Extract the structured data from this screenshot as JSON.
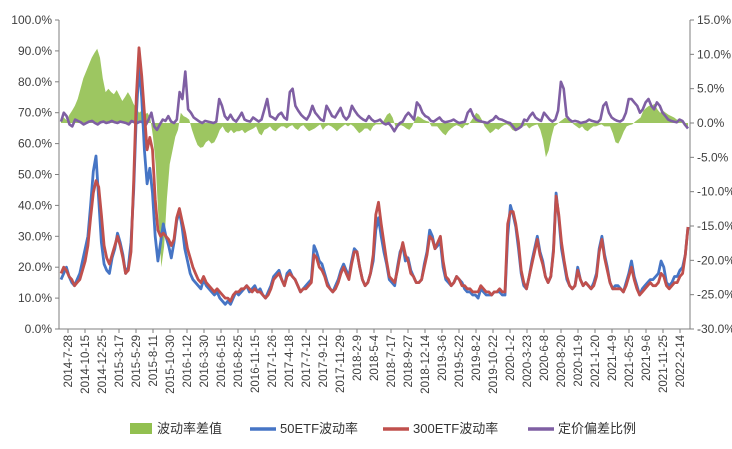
{
  "chart_data": {
    "type": "line",
    "title": "",
    "xlabel": "",
    "ylabel": "",
    "y_left": {
      "min": 0,
      "max": 100,
      "ticks": [
        "0.0%",
        "10.0%",
        "20.0%",
        "30.0%",
        "40.0%",
        "50.0%",
        "60.0%",
        "70.0%",
        "80.0%",
        "90.0%",
        "100.0%"
      ]
    },
    "y_right": {
      "min": -30,
      "max": 15,
      "ticks": [
        "-30.0%",
        "-25.0%",
        "-20.0%",
        "-15.0%",
        "-10.0%",
        "-5.0%",
        "0.0%",
        "5.0%",
        "10.0%",
        "15.0%"
      ]
    },
    "x_tick_labels": [
      "2014-7-28",
      "2014-10-15",
      "2014-12-25",
      "2015-3-17",
      "2015-5-29",
      "2015-8-11",
      "2015-10-30",
      "2016-1-12",
      "2016-3-30",
      "2016-6-15",
      "2016-8-25",
      "2016-11-15",
      "2017-1-26",
      "2017-4-18",
      "2017-7-12",
      "2017-9-12",
      "2017-11-29",
      "2018-2-9",
      "2018-5-4",
      "2018-7-17",
      "2018-9-27",
      "2018-12-14",
      "2019-3-6",
      "2019-5-22",
      "2019-8-2",
      "2019-10-22",
      "2020-1-2",
      "2020-3-23",
      "2020-6-8",
      "2020-8-20",
      "2020-11-9",
      "2021-1-20",
      "2021-4-9",
      "2021-6-25",
      "2021-9-6",
      "2021-11-25",
      "2022-2-14"
    ],
    "grid": false,
    "legend": "bottom",
    "colors": {
      "diff": "#92c050",
      "etf50": "#4675c5",
      "etf300": "#c0504d",
      "pricing": "#7f5fa3",
      "axis": "#7f7f7f",
      "tick_text": "#404040"
    },
    "series": [
      {
        "name": "波动率差值",
        "type": "area",
        "axis": "right",
        "values": [
          0.5,
          0.8,
          0.4,
          1.2,
          1.8,
          2.5,
          3.5,
          5,
          6.5,
          7.5,
          8.5,
          9.5,
          10.2,
          10.8,
          9.5,
          6.5,
          4.5,
          5,
          4.5,
          4.2,
          4.8,
          4,
          3.2,
          3.8,
          4.5,
          3.8,
          2.8,
          2.2,
          1.5,
          1.8,
          1.2,
          1.5,
          0.8,
          -2,
          -6,
          -14,
          -21,
          -18,
          -11,
          -6,
          -4,
          -2,
          -1,
          1.5,
          1,
          0.8,
          0.5,
          -1,
          -2.2,
          -3.2,
          -3.6,
          -3.5,
          -2.8,
          -2.5,
          -3,
          -2.8,
          -2,
          -1,
          -0.5,
          -1.2,
          -1.5,
          -1,
          -1.5,
          -1.2,
          -1.2,
          -1,
          -1.5,
          -1.2,
          -1,
          -0.8,
          -0.5,
          -1.5,
          -1.8,
          -1,
          -0.8,
          -0.5,
          -1,
          -1.2,
          -0.8,
          -0.5,
          -0.5,
          -0.8,
          -0.5,
          -0.3,
          -0.8,
          -1,
          -0.5,
          -0.3,
          -0.8,
          -1.2,
          -1,
          -0.8,
          -0.5,
          -0.2,
          -1,
          -0.5,
          -0.3,
          -0.5,
          -0.8,
          -1.2,
          -0.8,
          -0.5,
          -0.2,
          -0.5,
          -0.2,
          -0.5,
          -1,
          -1.5,
          -1.2,
          -0.8,
          -0.8,
          -1.2,
          -0.5,
          -0.2,
          -0.2,
          -0.2,
          0.5,
          1.2,
          1.5,
          0.8,
          -0.5,
          -0.5,
          -0.3,
          -0.5,
          -0.8,
          -1,
          -0.5,
          0.5,
          1,
          0.8,
          0.5,
          0.3,
          0.2,
          -0.5,
          -0.5,
          -0.5,
          -1,
          -1.5,
          -1.8,
          -1.2,
          -0.8,
          -0.5,
          -0.3,
          -0.5,
          -0.8,
          -0.3,
          -0.3,
          0.2,
          0.8,
          1.5,
          1.2,
          0.5,
          -0.5,
          -1,
          -1.5,
          -1.2,
          -0.8,
          -1,
          -0.6,
          -0.3,
          -0.2,
          -0.5,
          -1,
          -1.2,
          -0.8,
          -0.5,
          -0.5,
          -0.3,
          -0.8,
          -0.5,
          -0.3,
          -0.2,
          -1,
          -2.5,
          -5,
          -4,
          -2,
          -0.5,
          -0.2,
          0.2,
          0.5,
          0.8,
          0.5,
          0.2,
          -0.2,
          -0.5,
          -0.8,
          -0.5,
          -1,
          -1.2,
          -0.8,
          -0.5,
          -0.5,
          -0.3,
          -0.2,
          -0.5,
          -0.5,
          -0.5,
          -1.5,
          -2.8,
          -3,
          -2.2,
          -1.2,
          -0.5,
          -0.3,
          -0.2,
          0.2,
          0.5,
          0.8,
          1.8,
          2.2,
          2.5,
          2.5,
          2.8,
          2,
          1.5,
          1.8,
          1.5,
          1.2,
          1,
          0.8,
          0.5,
          0.3,
          0.2,
          -0.2,
          -0.5
        ],
        "note": "left to right across the chart"
      },
      {
        "name": "50ETF波动率",
        "type": "line",
        "axis": "left",
        "values": [
          16,
          18,
          20,
          17,
          15,
          14,
          16,
          18,
          22,
          26,
          30,
          40,
          51,
          56,
          42,
          28,
          21,
          19,
          18,
          23,
          26,
          31,
          28,
          24,
          18,
          20,
          28,
          45,
          69,
          85,
          75,
          58,
          47,
          52,
          44,
          30,
          22,
          28,
          34,
          30,
          27,
          23,
          28,
          35,
          38,
          33,
          26,
          22,
          18,
          16,
          15,
          14,
          13,
          16,
          14,
          13,
          12,
          11,
          12,
          10,
          9,
          8,
          9,
          8,
          10,
          12,
          11,
          12,
          13,
          14,
          12,
          13,
          14,
          12,
          13,
          11,
          10,
          12,
          14,
          17,
          18,
          19,
          16,
          14,
          18,
          19,
          17,
          16,
          14,
          12,
          13,
          14,
          15,
          16,
          27,
          25,
          22,
          21,
          18,
          15,
          13,
          12,
          14,
          16,
          19,
          21,
          19,
          17,
          22,
          26,
          25,
          20,
          16,
          14,
          15,
          18,
          22,
          32,
          36,
          30,
          25,
          21,
          16,
          15,
          14,
          20,
          25,
          27,
          22,
          23,
          19,
          17,
          15,
          15,
          16,
          21,
          25,
          32,
          30,
          26,
          27,
          28,
          20,
          16,
          15,
          14,
          15,
          17,
          16,
          15,
          13,
          12,
          12,
          11,
          11,
          10,
          13,
          12,
          11,
          11,
          11,
          12,
          12,
          12,
          11,
          11,
          30,
          40,
          37,
          33,
          26,
          18,
          14,
          13,
          17,
          22,
          26,
          30,
          25,
          22,
          17,
          15,
          17,
          26,
          44,
          36,
          26,
          21,
          16,
          14,
          13,
          14,
          20,
          16,
          14,
          15,
          14,
          13,
          15,
          18,
          26,
          30,
          24,
          20,
          15,
          13,
          14,
          14,
          13,
          12,
          15,
          18,
          22,
          17,
          14,
          11,
          13,
          14,
          15,
          16,
          16,
          17,
          18,
          22,
          20,
          15,
          14,
          15,
          17,
          17,
          19,
          20,
          24,
          33
        ]
      },
      {
        "name": "300ETF波动率",
        "type": "line",
        "axis": "left",
        "values": [
          18,
          20,
          19,
          17,
          16,
          14,
          15,
          16,
          19,
          22,
          27,
          36,
          44,
          48,
          46,
          37,
          27,
          23,
          21,
          24,
          27,
          30,
          27,
          23,
          18,
          19,
          25,
          48,
          75,
          91,
          82,
          70,
          58,
          62,
          58,
          42,
          32,
          30,
          31,
          30,
          29,
          27,
          29,
          36,
          39,
          35,
          31,
          26,
          23,
          20,
          18,
          16,
          15,
          17,
          15,
          14,
          13,
          12,
          13,
          12,
          11,
          10,
          10,
          9,
          11,
          12,
          12,
          13,
          13,
          14,
          13,
          12,
          13,
          12,
          12,
          11,
          10,
          11,
          13,
          16,
          17,
          18,
          16,
          14,
          17,
          18,
          17,
          16,
          14,
          12,
          13,
          13,
          14,
          15,
          24,
          23,
          20,
          19,
          17,
          14,
          13,
          12,
          13,
          15,
          18,
          20,
          18,
          16,
          21,
          25,
          25,
          20,
          16,
          14,
          15,
          18,
          24,
          37,
          41,
          34,
          28,
          22,
          17,
          16,
          15,
          19,
          24,
          28,
          24,
          22,
          18,
          17,
          15,
          15,
          16,
          20,
          24,
          30,
          29,
          26,
          28,
          30,
          22,
          17,
          16,
          14,
          15,
          17,
          16,
          14,
          14,
          13,
          13,
          12,
          12,
          12,
          14,
          13,
          12,
          12,
          11,
          12,
          12,
          13,
          12,
          12,
          34,
          38,
          38,
          34,
          28,
          19,
          15,
          13,
          17,
          21,
          25,
          29,
          24,
          21,
          17,
          15,
          17,
          25,
          43,
          37,
          28,
          22,
          17,
          14,
          13,
          14,
          19,
          16,
          14,
          15,
          14,
          13,
          14,
          17,
          25,
          29,
          23,
          19,
          15,
          13,
          13,
          13,
          13,
          12,
          14,
          17,
          20,
          16,
          13,
          11,
          12,
          13,
          14,
          15,
          14,
          14,
          15,
          18,
          17,
          14,
          13,
          14,
          15,
          15,
          17,
          18,
          24,
          33
        ]
      },
      {
        "name": "定价偏差比例",
        "type": "line",
        "axis": "right",
        "values": [
          0.2,
          1.5,
          1,
          -0.2,
          -0.5,
          0.5,
          0.3,
          0.1,
          -0.2,
          0,
          0.2,
          0.3,
          0,
          -0.2,
          0.1,
          0.2,
          0,
          0.1,
          0.3,
          0.1,
          0,
          0.2,
          0.1,
          0,
          -0.2,
          0.3,
          0.1,
          0,
          0.2,
          0.1,
          -0.3,
          0.5,
          1.5,
          -0.5,
          -1,
          -0.2,
          0.5,
          0.3,
          1,
          0.2,
          0,
          0.5,
          4.5,
          3.5,
          7.5,
          2,
          1.5,
          0.8,
          0.5,
          0.2,
          0,
          0.3,
          0.2,
          0.1,
          0,
          0.2,
          3.5,
          2.5,
          1,
          0.5,
          1.2,
          0.5,
          0.2,
          0.8,
          1.5,
          0.5,
          0.3,
          0.2,
          0.8,
          0.5,
          0.2,
          0.5,
          2,
          3.5,
          1,
          0.8,
          0.5,
          1.2,
          1.5,
          0.8,
          0.5,
          4.5,
          5,
          2.5,
          1.8,
          1.2,
          0.8,
          0.5,
          1.2,
          2.5,
          1.5,
          1,
          0.5,
          0.3,
          2.5,
          1.8,
          1,
          0.8,
          1.5,
          2.2,
          1,
          0.5,
          1,
          2.5,
          1.8,
          1.2,
          0.8,
          0.5,
          0.3,
          1,
          0.5,
          0.2,
          0.3,
          0.5,
          0,
          -0.2,
          0,
          -0.5,
          -1.2,
          -0.5,
          0,
          0.2,
          1,
          1.5,
          1,
          0.5,
          3,
          2.5,
          1.5,
          1,
          0.8,
          0.3,
          0.2,
          0.5,
          0.8,
          0.3,
          0.1,
          0.2,
          0.3,
          0.5,
          0.2,
          0,
          0.1,
          0.2,
          1.5,
          2,
          1,
          0.5,
          0.3,
          0.2,
          0.1,
          0,
          0.3,
          0.5,
          1,
          0.6,
          0.5,
          0.3,
          0.1,
          0,
          -0.5,
          -1,
          -0.8,
          -0.5,
          0.5,
          0.3,
          1,
          1.5,
          0.8,
          0.5,
          0.3,
          1.5,
          1,
          0.5,
          0.2,
          0.5,
          1.8,
          6,
          5,
          1,
          0.5,
          0.2,
          0.3,
          0.2,
          0,
          0.1,
          0.2,
          0.5,
          0.3,
          0.2,
          0.1,
          0.5,
          2.5,
          3,
          1.5,
          0.8,
          0.5,
          0.3,
          0.2,
          0.5,
          1.5,
          3.5,
          3.5,
          3,
          2.5,
          1.5,
          2,
          3,
          3.5,
          2.5,
          2,
          3,
          2.5,
          1.5,
          1,
          0.5,
          0.3,
          0.2,
          0.1,
          0.5,
          0.3,
          -0.3,
          -0.8
        ]
      }
    ]
  }
}
